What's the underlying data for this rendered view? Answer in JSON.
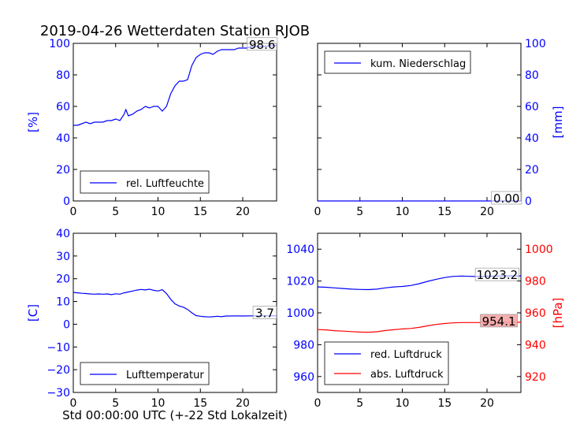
{
  "figure": {
    "title": "2019-04-26 Wetterdaten Station RJOB",
    "xlabel": "Std 00:00:00 UTC (+-22 Std Lokalzeit)"
  },
  "colors": {
    "blue": "#0000ff",
    "red": "#ff0000",
    "axis": "#000000",
    "redbox": "#f4a6a6"
  },
  "chart_data": [
    {
      "id": "humidity",
      "type": "line",
      "ylabel": "[%]",
      "ylabel_side": "left",
      "ylabel_color": "#0000ff",
      "xlim": [
        0,
        24
      ],
      "ylim": [
        0,
        100
      ],
      "xticks": [
        0,
        5,
        10,
        15,
        20
      ],
      "yticks": [
        0,
        20,
        40,
        60,
        80,
        100
      ],
      "ytick_color": "#0000ff",
      "legend_loc": "lower-left",
      "annotations": [
        {
          "text": "98.6",
          "x": 22.3,
          "y": 98.6
        }
      ],
      "series": [
        {
          "name": "rel. Luftfeuchte",
          "color": "#0000ff",
          "x": [
            0,
            0.5,
            1,
            1.5,
            2,
            2.5,
            3,
            3.5,
            4,
            4.5,
            5,
            5.5,
            6,
            6.2,
            6.5,
            7,
            7.5,
            8,
            8.5,
            9,
            9.5,
            10,
            10.5,
            11,
            11.5,
            12,
            12.5,
            13,
            13.5,
            14,
            14.5,
            15,
            15.5,
            16,
            16.5,
            17,
            17.5,
            18,
            18.5,
            19,
            19.5,
            20,
            20.5,
            21,
            21.5,
            22,
            22.5,
            23,
            23.5,
            24
          ],
          "y": [
            48,
            48,
            49,
            50,
            49,
            50,
            50,
            50,
            51,
            51,
            52,
            51,
            55,
            58,
            54,
            55,
            57,
            58,
            60,
            59,
            60,
            60,
            57,
            60,
            68,
            73,
            76,
            76,
            77,
            86,
            91,
            93,
            94,
            94,
            93,
            95,
            96,
            96,
            96,
            96,
            97,
            97,
            97,
            98,
            98,
            98,
            98,
            98.3,
            98.5,
            98.6
          ]
        }
      ]
    },
    {
      "id": "precipitation",
      "type": "line",
      "ylabel": "[mm]",
      "ylabel_side": "right",
      "ylabel_color": "#0000ff",
      "xlim": [
        0,
        24
      ],
      "ylim": [
        0,
        100
      ],
      "xticks": [
        0,
        5,
        10,
        15,
        20
      ],
      "yticks": [
        0,
        20,
        40,
        60,
        80,
        100
      ],
      "ytick_color": "#0000ff",
      "legend_loc": "upper-left",
      "annotations": [
        {
          "text": "0.00",
          "x": 22.3,
          "y": 1
        }
      ],
      "series": [
        {
          "name": "kum. Niederschlag",
          "color": "#0000ff",
          "x": [
            0,
            24
          ],
          "y": [
            0,
            0
          ]
        }
      ]
    },
    {
      "id": "temperature",
      "type": "line",
      "ylabel": "[C]",
      "ylabel_side": "left",
      "ylabel_color": "#0000ff",
      "xlim": [
        0,
        24
      ],
      "ylim": [
        -30,
        40
      ],
      "xticks": [
        0,
        5,
        10,
        15,
        20
      ],
      "yticks": [
        -30,
        -20,
        -10,
        0,
        10,
        20,
        30,
        40
      ],
      "ytick_color": "#0000ff",
      "legend_loc": "lower-left",
      "annotations": [
        {
          "text": "3.7",
          "x": 22.6,
          "y": 4.5
        }
      ],
      "series": [
        {
          "name": "Lufttemperatur",
          "color": "#0000ff",
          "x": [
            0,
            0.5,
            1,
            1.5,
            2,
            2.5,
            3,
            3.5,
            4,
            4.5,
            5,
            5.5,
            6,
            6.5,
            7,
            7.5,
            8,
            8.5,
            9,
            9.5,
            10,
            10.5,
            11,
            11.5,
            12,
            12.5,
            13,
            13.5,
            14,
            14.5,
            15,
            15.5,
            16,
            16.5,
            17,
            17.5,
            18,
            18.5,
            19,
            20,
            21,
            22,
            23,
            24
          ],
          "y": [
            14,
            13.8,
            13.6,
            13.5,
            13.3,
            13.2,
            13.3,
            13.2,
            13.3,
            13,
            13.4,
            13.2,
            13.8,
            14.2,
            14.6,
            15,
            15.3,
            15.1,
            15.4,
            14.9,
            14.6,
            15.2,
            13.5,
            11,
            9,
            8,
            7.5,
            6.5,
            5,
            3.8,
            3.5,
            3.3,
            3.2,
            3.3,
            3.5,
            3.3,
            3.6,
            3.6,
            3.7,
            3.6,
            3.7,
            3.7,
            3.7,
            3.7
          ]
        }
      ]
    },
    {
      "id": "pressure",
      "type": "line",
      "ylabel": "[hPa]",
      "ylabel_side": "right",
      "ylabel_color": "#ff0000",
      "xlim": [
        0,
        24
      ],
      "ylim": [
        950,
        1050
      ],
      "y2lim": [
        910,
        1010
      ],
      "xticks": [
        0,
        5,
        10,
        15,
        20
      ],
      "yticks": [
        960,
        980,
        1000,
        1020,
        1040
      ],
      "ytick_color": "#0000ff",
      "y2ticks": [
        920,
        940,
        960,
        980,
        1000
      ],
      "y2tick_color": "#ff0000",
      "legend_loc": "lower-left",
      "annotations": [
        {
          "text": "1023.2",
          "x": 21.2,
          "y": 1023.2,
          "axis": "left"
        },
        {
          "text": "954.1",
          "x": 21.4,
          "y": 954.1,
          "axis": "right",
          "boxed_red": true
        }
      ],
      "series": [
        {
          "name": "red. Luftdruck",
          "color": "#0000ff",
          "axis": "left",
          "x": [
            0,
            1,
            2,
            3,
            4,
            5,
            6,
            7,
            8,
            9,
            10,
            11,
            12,
            13,
            14,
            15,
            16,
            17,
            18,
            19,
            20,
            21,
            22,
            23,
            24
          ],
          "y": [
            1016.3,
            1016.1,
            1015.7,
            1015.3,
            1014.9,
            1014.7,
            1014.6,
            1014.9,
            1015.7,
            1016.3,
            1016.6,
            1017.2,
            1018.3,
            1019.8,
            1021.1,
            1022.2,
            1022.9,
            1023.1,
            1022.9,
            1022.8,
            1023,
            1023.1,
            1023.2,
            1023.2,
            1023.2
          ]
        },
        {
          "name": "abs. Luftdruck",
          "color": "#ff0000",
          "axis": "right",
          "x": [
            0,
            1,
            2,
            3,
            4,
            5,
            6,
            7,
            8,
            9,
            10,
            11,
            12,
            13,
            14,
            15,
            16,
            17,
            18,
            19,
            20,
            21,
            22,
            23,
            24
          ],
          "y": [
            949.5,
            949.3,
            948.8,
            948.5,
            948.2,
            947.9,
            947.8,
            948.1,
            948.9,
            949.4,
            949.9,
            950.2,
            950.9,
            951.9,
            952.7,
            953.3,
            953.7,
            953.9,
            953.9,
            953.9,
            954,
            954,
            954.1,
            954.1,
            954.1
          ]
        }
      ]
    }
  ]
}
